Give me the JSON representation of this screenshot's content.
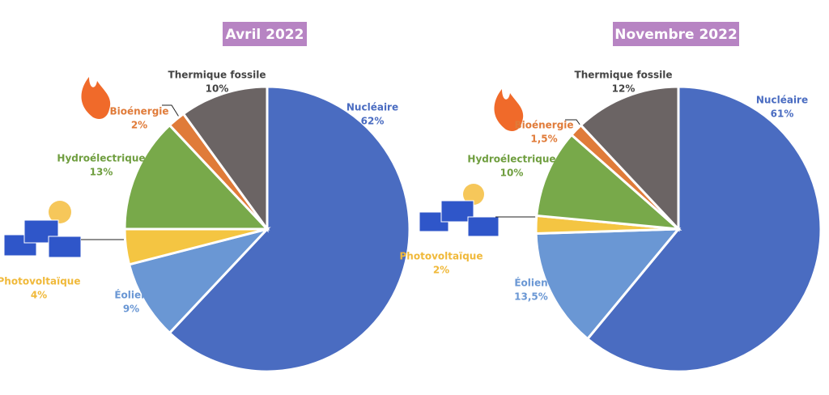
{
  "chart_data": [
    {
      "type": "pie",
      "title": "Avril 2022",
      "categories": [
        "Nucléaire",
        "Éolien",
        "Photovoltaïque",
        "Hydroélectrique",
        "Bioénergie",
        "Thermique fossile"
      ],
      "values": [
        62,
        9,
        4,
        13,
        2,
        10
      ],
      "value_labels": [
        "62%",
        "9%",
        "4%",
        "13%",
        "2%",
        "10%"
      ],
      "colors": [
        "#4a6cc1",
        "#6a97d4",
        "#f4c542",
        "#78a94a",
        "#e07b39",
        "#6b6464"
      ]
    },
    {
      "type": "pie",
      "title": "Novembre 2022",
      "categories": [
        "Nucléaire",
        "Éolien",
        "Photovoltaïque",
        "Hydroélectrique",
        "Bioénergie",
        "Thermique fossile"
      ],
      "values": [
        61,
        13.5,
        2,
        10,
        1.5,
        12
      ],
      "value_labels": [
        "61%",
        "13,5%",
        "2%",
        "10%",
        "1,5%",
        "12%"
      ],
      "colors": [
        "#4a6cc1",
        "#6a97d4",
        "#f4c542",
        "#78a94a",
        "#e07b39",
        "#6b6464"
      ]
    }
  ]
}
